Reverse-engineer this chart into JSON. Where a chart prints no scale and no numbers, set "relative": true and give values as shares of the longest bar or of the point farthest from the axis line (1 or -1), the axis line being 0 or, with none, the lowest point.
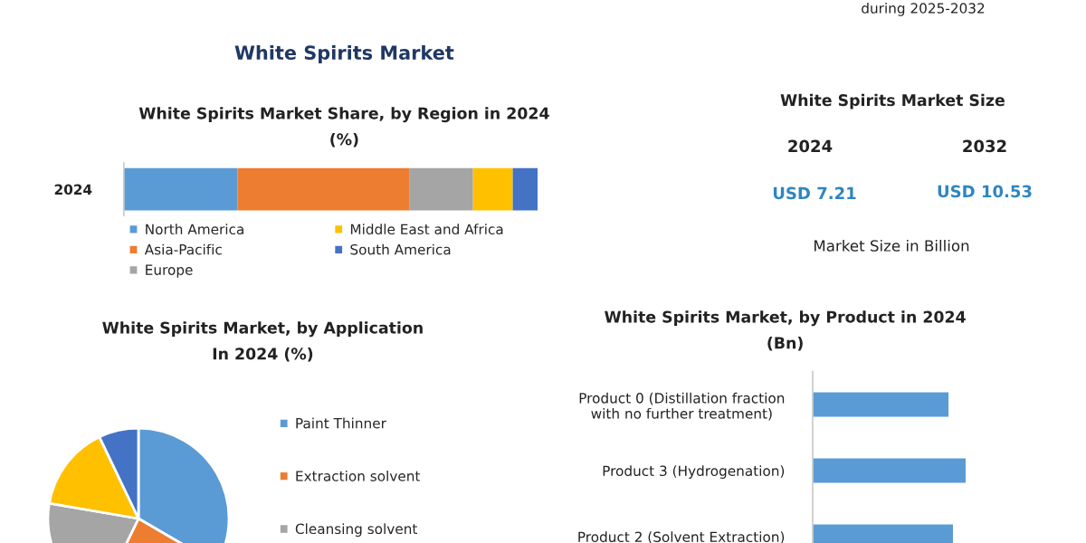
{
  "chart_data": [
    {
      "type": "other",
      "title": "White Spirits Market",
      "annotations": [
        "during 2025-2032"
      ]
    },
    {
      "type": "bar",
      "title": "White Spirits Market Share, by Region in 2024\n(%)",
      "orientation": "horizontal",
      "stacked": true,
      "relative": true,
      "categories": [
        "2024"
      ],
      "legend": "bottom",
      "series": [
        {
          "name": "North America",
          "color": "#5b9bd5",
          "values": [
            0.275
          ]
        },
        {
          "name": "Asia-Pacific",
          "color": "#ed7d31",
          "values": [
            0.416
          ]
        },
        {
          "name": "Europe",
          "color": "#a5a5a5",
          "values": [
            0.153
          ]
        },
        {
          "name": "Middle East and Africa",
          "color": "#ffc000",
          "values": [
            0.096
          ]
        },
        {
          "name": "South America",
          "color": "#4472c4",
          "values": [
            0.06
          ]
        }
      ]
    },
    {
      "type": "other",
      "title": "White Spirits Market Size",
      "annotations": [
        "2024",
        "2032",
        "USD 7.21",
        "USD 10.53",
        "Market Size in Billion"
      ]
    },
    {
      "type": "pie",
      "title": "White Spirits Market, by Application\nIn 2024 (%)",
      "legend": "right",
      "categories": [
        "Paint Thinner",
        "Extraction solvent",
        "Cleansing solvent",
        null,
        null
      ],
      "values": [
        33.4,
        23.8,
        20.5,
        15.2,
        7.1
      ],
      "colors": [
        "#5b9bd5",
        "#ed7d31",
        "#a5a5a5",
        "#ffc000",
        "#4472c4"
      ]
    },
    {
      "type": "bar",
      "title": "White Spirits Market, by Product in 2024\n(Bn)",
      "orientation": "horizontal",
      "relative": true,
      "categories": [
        "Product 0 (Distillation fraction\nwith no further treatment)",
        "Product 3 (Hydrogenation)",
        "Product 2 (Solvent Extraction)"
      ],
      "values": [
        0.888,
        1,
        0.917
      ],
      "color": "#5b9bd5"
    }
  ]
}
